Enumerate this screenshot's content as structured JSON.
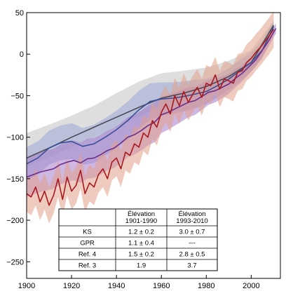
{
  "chart_data": {
    "type": "line",
    "title": "",
    "xlabel": "",
    "ylabel": "",
    "xlim": [
      1900,
      2013
    ],
    "ylim": [
      -270,
      50
    ],
    "x_ticks": [
      1900,
      1920,
      1940,
      1960,
      1980,
      2000
    ],
    "y_ticks": [
      50,
      0,
      -50,
      -100,
      -150,
      -200,
      -250
    ],
    "grid": false,
    "colors": {
      "gray_band": "#c2c2c4",
      "gray_line": "#4a4a55",
      "blue_band": "#9ca7d6",
      "blue_line": "#3a4f98",
      "purple_band": "#a67cc9",
      "purple_line": "#6b2d8c",
      "red_band": "#e2a08a",
      "red_line": "#a8191e"
    },
    "series": [
      {
        "color_key": "gray",
        "x": [
          1900,
          1910,
          1920,
          1930,
          1940,
          1950,
          1960,
          1970,
          1980,
          1990,
          2000,
          2010
        ],
        "values": [
          -125,
          -113,
          -100,
          -88,
          -76,
          -64,
          -53,
          -47,
          -39,
          -27,
          -10,
          35
        ],
        "lower": [
          -136,
          -124,
          -112,
          -100,
          -88,
          -75,
          -63,
          -56,
          -48,
          -35,
          -17,
          28
        ],
        "upper": [
          -95,
          -85,
          -74,
          -62,
          -47,
          -33,
          -23,
          -20,
          -16,
          -8,
          5,
          40
        ]
      },
      {
        "color_key": "blue",
        "x": [
          1900,
          1905,
          1910,
          1915,
          1920,
          1925,
          1930,
          1935,
          1940,
          1945,
          1950,
          1955,
          1960,
          1965,
          1970,
          1975,
          1980,
          1985,
          1990,
          1995,
          2000,
          2005,
          2010
        ],
        "values": [
          -132,
          -125,
          -113,
          -107,
          -105,
          -111,
          -108,
          -100,
          -91,
          -80,
          -67,
          -57,
          -54,
          -53,
          -51,
          -48,
          -45,
          -38,
          -30,
          -20,
          -10,
          5,
          33
        ],
        "lower": [
          -152,
          -145,
          -133,
          -128,
          -126,
          -133,
          -131,
          -122,
          -113,
          -103,
          -90,
          -79,
          -74,
          -72,
          -69,
          -65,
          -60,
          -52,
          -43,
          -33,
          -21,
          -5,
          25
        ],
        "upper": [
          -112,
          -105,
          -92,
          -86,
          -83,
          -89,
          -85,
          -77,
          -68,
          -57,
          -44,
          -35,
          -34,
          -34,
          -33,
          -31,
          -30,
          -25,
          -17,
          -7,
          2,
          16,
          40
        ]
      },
      {
        "color_key": "purple",
        "x": [
          1900,
          1903,
          1906,
          1909,
          1912,
          1915,
          1918,
          1921,
          1924,
          1927,
          1930,
          1933,
          1936,
          1939,
          1942,
          1945,
          1948,
          1951,
          1954,
          1957,
          1960,
          1963,
          1966,
          1969,
          1972,
          1975,
          1978,
          1981,
          1984,
          1987,
          1990,
          1993,
          1996,
          1999,
          2002,
          2005,
          2008,
          2011
        ],
        "values": [
          -148,
          -145,
          -142,
          -140,
          -138,
          -133,
          -130,
          -128,
          -131,
          -126,
          -125,
          -121,
          -116,
          -113,
          -107,
          -100,
          -97,
          -92,
          -86,
          -82,
          -73,
          -70,
          -66,
          -62,
          -58,
          -56,
          -51,
          -46,
          -44,
          -40,
          -36,
          -29,
          -23,
          -15,
          -7,
          5,
          17,
          31
        ],
        "lower": [
          -172,
          -169,
          -166,
          -164,
          -162,
          -157,
          -154,
          -152,
          -155,
          -150,
          -149,
          -145,
          -140,
          -137,
          -131,
          -124,
          -121,
          -116,
          -110,
          -106,
          -95,
          -91,
          -86,
          -81,
          -76,
          -73,
          -67,
          -61,
          -58,
          -53,
          -48,
          -40,
          -33,
          -24,
          -15,
          -3,
          10,
          25
        ],
        "upper": [
          -124,
          -121,
          -118,
          -116,
          -114,
          -109,
          -106,
          -104,
          -107,
          -102,
          -101,
          -97,
          -92,
          -89,
          -83,
          -76,
          -73,
          -68,
          -62,
          -58,
          -51,
          -49,
          -46,
          -43,
          -40,
          -39,
          -35,
          -31,
          -30,
          -27,
          -24,
          -18,
          -13,
          -6,
          1,
          13,
          24,
          37
        ]
      },
      {
        "color_key": "red",
        "x": [
          1900,
          1902,
          1904,
          1906,
          1908,
          1910,
          1912,
          1914,
          1916,
          1918,
          1920,
          1922,
          1924,
          1926,
          1928,
          1930,
          1932,
          1934,
          1936,
          1938,
          1940,
          1942,
          1944,
          1946,
          1948,
          1950,
          1952,
          1954,
          1956,
          1958,
          1960,
          1962,
          1964,
          1966,
          1968,
          1970,
          1972,
          1974,
          1976,
          1978,
          1980,
          1982,
          1984,
          1986,
          1988,
          1990,
          1992,
          1994,
          1996,
          1998,
          2000,
          2002,
          2004,
          2006,
          2008,
          2010
        ],
        "values": [
          -168,
          -172,
          -160,
          -178,
          -165,
          -182,
          -170,
          -150,
          -175,
          -148,
          -165,
          -158,
          -140,
          -168,
          -155,
          -160,
          -145,
          -138,
          -150,
          -130,
          -125,
          -138,
          -118,
          -122,
          -108,
          -112,
          -95,
          -100,
          -80,
          -88,
          -70,
          -60,
          -72,
          -50,
          -62,
          -45,
          -58,
          -48,
          -40,
          -52,
          -35,
          -38,
          -25,
          -42,
          -30,
          -32,
          -35,
          -22,
          -20,
          -10,
          -5,
          2,
          8,
          15,
          22,
          30
        ],
        "lower": [
          -190,
          -194,
          -182,
          -200,
          -187,
          -204,
          -192,
          -172,
          -197,
          -170,
          -187,
          -180,
          -162,
          -190,
          -177,
          -182,
          -167,
          -160,
          -172,
          -152,
          -147,
          -160,
          -140,
          -144,
          -130,
          -134,
          -117,
          -122,
          -102,
          -110,
          -92,
          -82,
          -94,
          -72,
          -84,
          -67,
          -80,
          -70,
          -62,
          -74,
          -57,
          -60,
          -47,
          -64,
          -52,
          -54,
          -57,
          -44,
          -42,
          -32,
          -27,
          -20,
          -14,
          -7,
          0,
          8
        ],
        "upper": [
          -146,
          -150,
          -138,
          -156,
          -143,
          -160,
          -148,
          -128,
          -153,
          -126,
          -143,
          -136,
          -118,
          -146,
          -133,
          -138,
          -123,
          -116,
          -128,
          -108,
          -103,
          -116,
          -96,
          -100,
          -86,
          -90,
          -73,
          -78,
          -58,
          -66,
          -48,
          -38,
          -50,
          -28,
          -40,
          -23,
          -36,
          -26,
          -18,
          -30,
          -13,
          -16,
          -3,
          -20,
          -8,
          -10,
          -13,
          0,
          2,
          12,
          17,
          24,
          30,
          37,
          44,
          52
        ]
      }
    ],
    "table": {
      "headers": [
        "",
        "Élévation\n1901-1990",
        "Élévation\n1993-2010"
      ],
      "rows": [
        [
          "KS",
          "1.2 ± 0.2",
          "3.0 ± 0.7"
        ],
        [
          "GPR",
          "1.1 ± 0.4",
          "---"
        ],
        [
          "Ref. 4",
          "1.5 ± 0.2",
          "2.8 ± 0.5"
        ],
        [
          "Ref. 3",
          "1.9",
          "3.7"
        ]
      ]
    }
  }
}
